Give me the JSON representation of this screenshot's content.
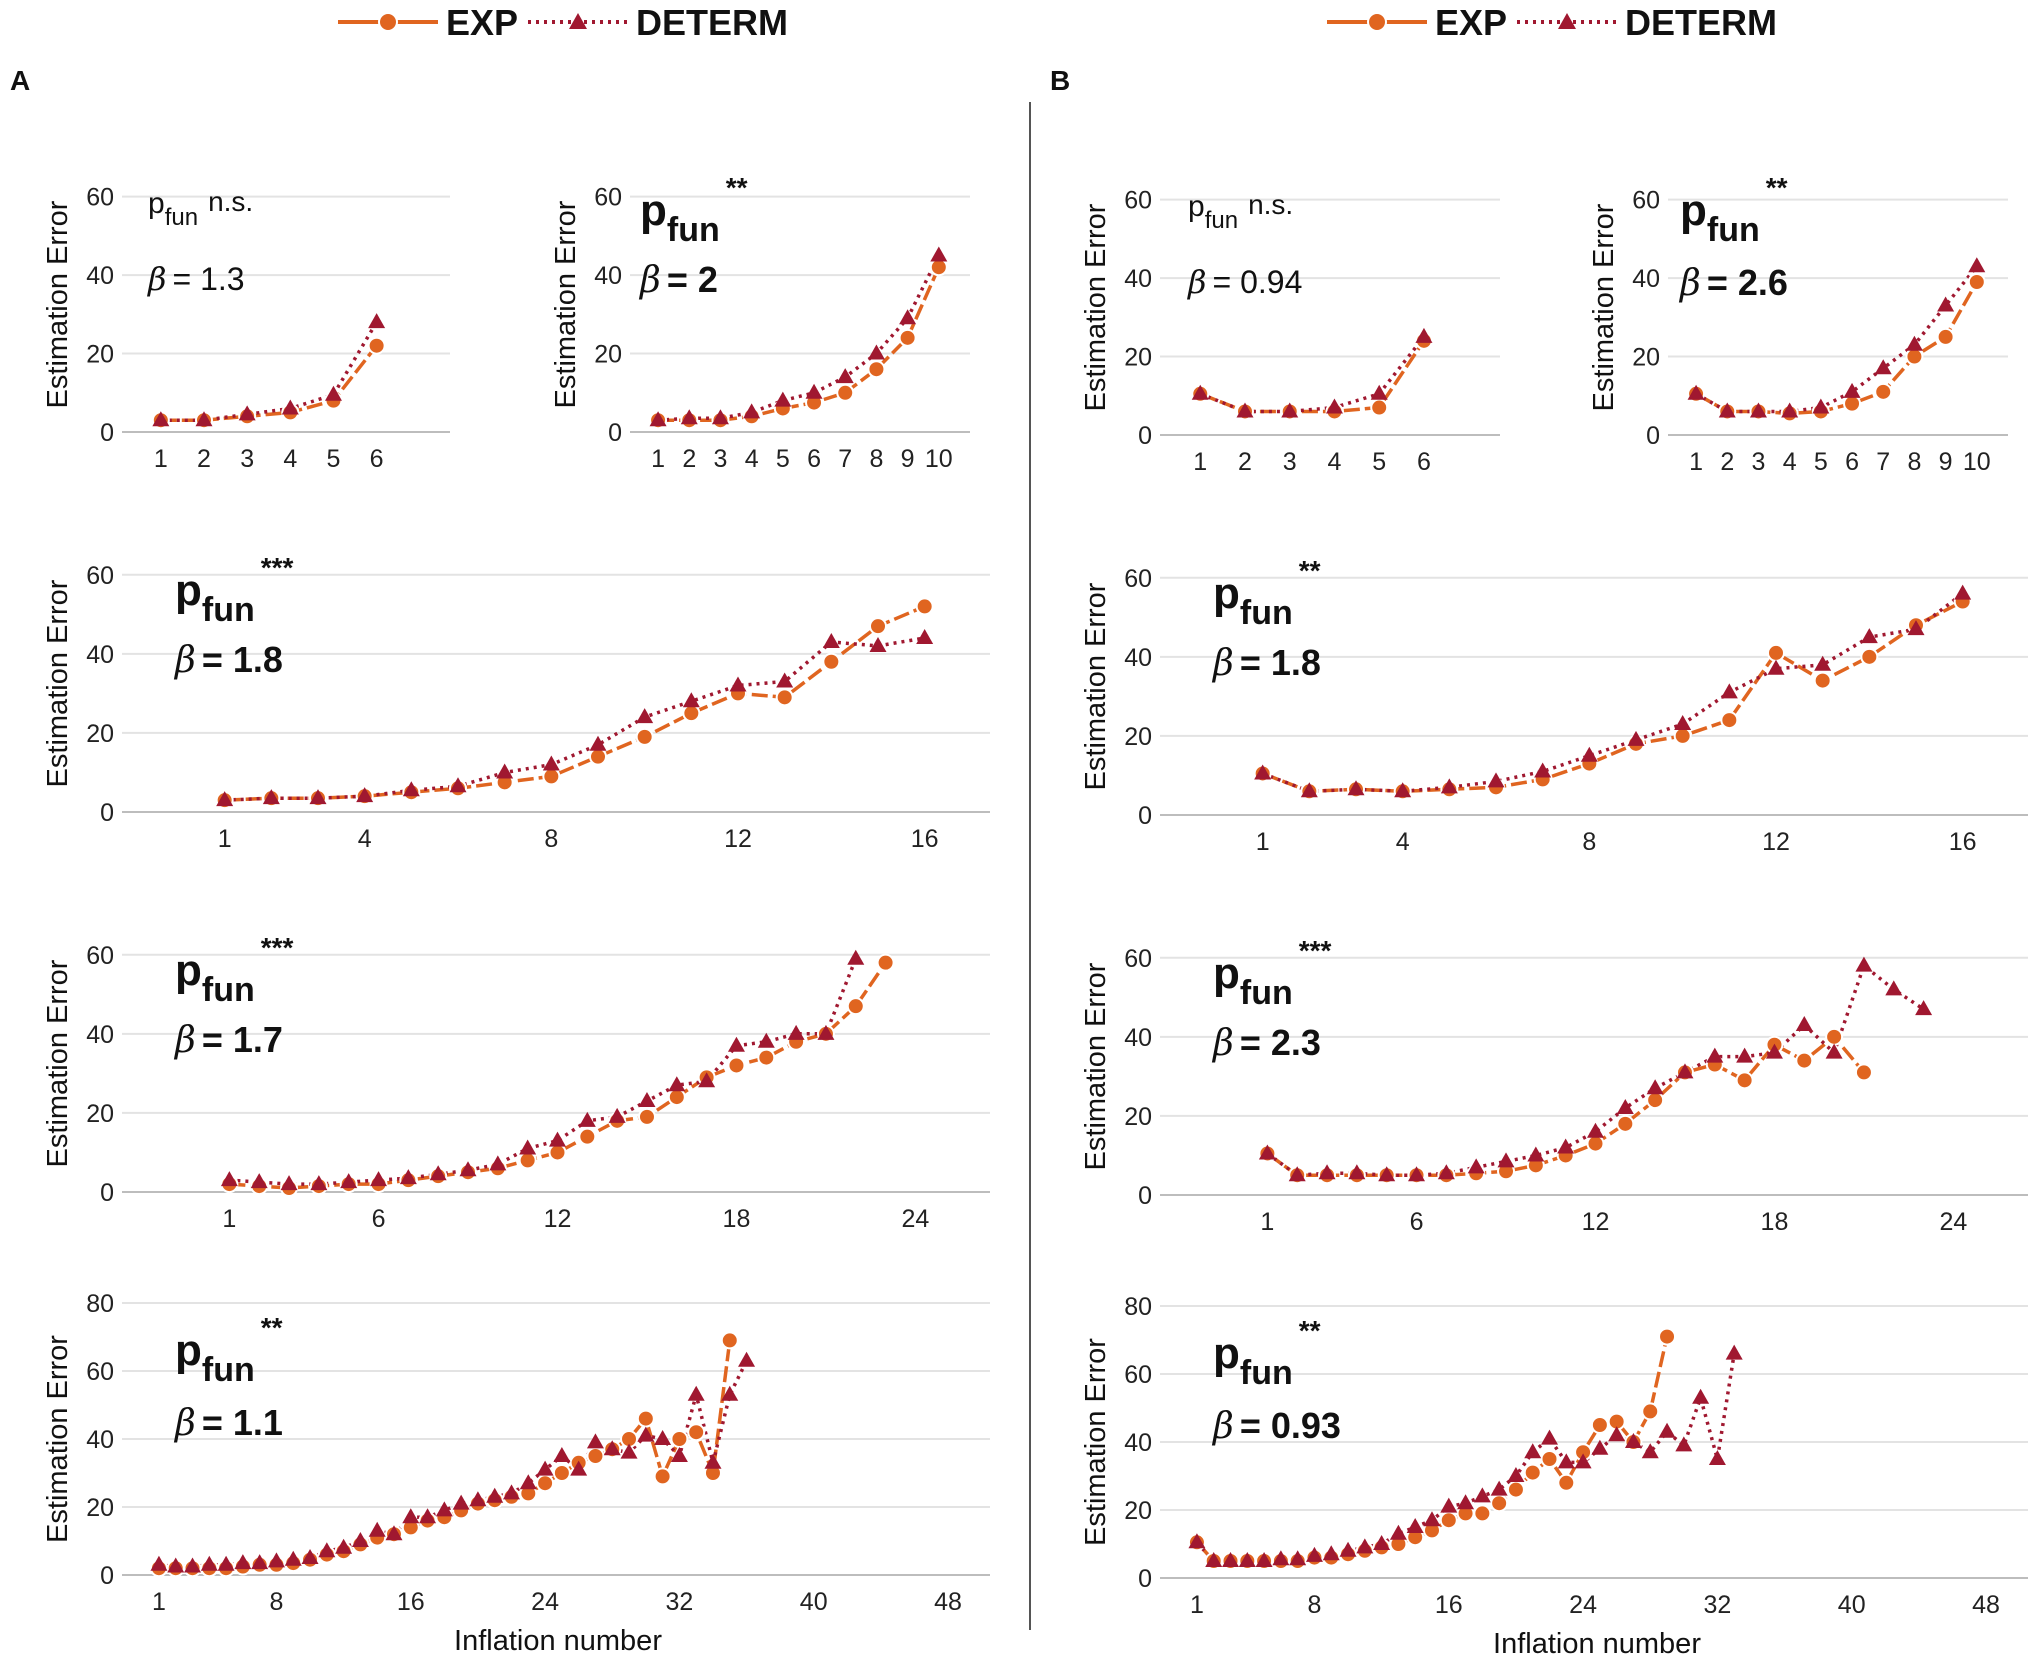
{
  "legend": {
    "exp_label": "EXP",
    "determ_label": "DETERM"
  },
  "colors": {
    "exp": "#e06520",
    "determ": "#a01830",
    "grid": "#e3e3e3",
    "divider": "#555555"
  },
  "panel_letters": {
    "A": "A",
    "B": "B"
  },
  "ylabel": "Estimation Error",
  "xlabel": "Inflation number",
  "chart_data": [
    {
      "id": "A1",
      "type": "line",
      "ylabel": "Estimation Error",
      "xticks": [
        1,
        2,
        3,
        4,
        5,
        6
      ],
      "xlim": [
        0.1,
        7.7
      ],
      "ylim": [
        0,
        65
      ],
      "yticks": [
        0,
        20,
        40,
        60
      ],
      "p_label": "p",
      "p_sub": "fun",
      "p_stars": "n.s.",
      "beta_label": "β",
      "beta_value": "= 1.3",
      "significant": false,
      "series": [
        {
          "name": "EXP",
          "x": [
            1,
            2,
            3,
            4,
            5,
            6
          ],
          "y": [
            3,
            3,
            4,
            5,
            8,
            22
          ]
        },
        {
          "name": "DETERM",
          "x": [
            1,
            2,
            3,
            4,
            5,
            6
          ],
          "y": [
            3,
            3,
            4.5,
            6,
            9.5,
            28
          ]
        }
      ]
    },
    {
      "id": "A2",
      "type": "line",
      "ylabel": "Estimation Error",
      "xticks": [
        1,
        2,
        3,
        4,
        5,
        6,
        7,
        8,
        9,
        10
      ],
      "xlim": [
        0.1,
        11
      ],
      "ylim": [
        0,
        65
      ],
      "yticks": [
        0,
        20,
        40,
        60
      ],
      "p_label": "p",
      "p_sub": "fun",
      "p_stars": "**",
      "beta_label": "β",
      "beta_value": "= 2",
      "significant": true,
      "series": [
        {
          "name": "EXP",
          "x": [
            1,
            2,
            3,
            4,
            5,
            6,
            7,
            8,
            9,
            10
          ],
          "y": [
            3,
            3,
            3,
            4,
            6,
            7.5,
            10,
            16,
            24,
            42
          ]
        },
        {
          "name": "DETERM",
          "x": [
            1,
            2,
            3,
            4,
            5,
            6,
            7,
            8,
            9,
            10
          ],
          "y": [
            3,
            3.5,
            3.5,
            5,
            8,
            10,
            14,
            20,
            29,
            45
          ]
        }
      ]
    },
    {
      "id": "B1",
      "type": "line",
      "ylabel": "Estimation Error",
      "xticks": [
        1,
        2,
        3,
        4,
        5,
        6
      ],
      "xlim": [
        0.1,
        7.7
      ],
      "ylim": [
        0,
        65
      ],
      "yticks": [
        0,
        20,
        40,
        60
      ],
      "p_label": "p",
      "p_sub": "fun",
      "p_stars": "n.s.",
      "beta_label": "β",
      "beta_value": "= 0.94",
      "significant": false,
      "series": [
        {
          "name": "EXP",
          "x": [
            1,
            2,
            3,
            4,
            5,
            6
          ],
          "y": [
            10.5,
            6,
            6,
            6,
            7,
            24
          ]
        },
        {
          "name": "DETERM",
          "x": [
            1,
            2,
            3,
            4,
            5,
            6
          ],
          "y": [
            10.5,
            6,
            6,
            7,
            10.5,
            25
          ]
        }
      ]
    },
    {
      "id": "B2",
      "type": "line",
      "ylabel": "Estimation Error",
      "xticks": [
        1,
        2,
        3,
        4,
        5,
        6,
        7,
        8,
        9,
        10
      ],
      "xlim": [
        0.1,
        11
      ],
      "ylim": [
        0,
        65
      ],
      "yticks": [
        0,
        20,
        40,
        60
      ],
      "p_label": "p",
      "p_sub": "fun",
      "p_stars": "**",
      "beta_label": "β",
      "beta_value": "= 2.6",
      "significant": true,
      "series": [
        {
          "name": "EXP",
          "x": [
            1,
            2,
            3,
            4,
            5,
            6,
            7,
            8,
            9,
            10
          ],
          "y": [
            10.5,
            6,
            6,
            5.5,
            6,
            8,
            11,
            20,
            25,
            39
          ]
        },
        {
          "name": "DETERM",
          "x": [
            1,
            2,
            3,
            4,
            5,
            6,
            7,
            8,
            9,
            10
          ],
          "y": [
            10.5,
            6,
            6,
            6,
            7,
            11,
            17,
            23,
            33,
            43
          ]
        }
      ]
    },
    {
      "id": "A3",
      "type": "line",
      "ylabel": "Estimation Error",
      "xticks": [
        1,
        4,
        8,
        12,
        16
      ],
      "xlim": [
        -1.2,
        17.4
      ],
      "ylim": [
        0,
        65
      ],
      "yticks": [
        0,
        20,
        40,
        60
      ],
      "p_label": "p",
      "p_sub": "fun",
      "p_stars": "***",
      "beta_label": "β",
      "beta_value": "= 1.8",
      "significant": true,
      "series": [
        {
          "name": "EXP",
          "x": [
            1,
            2,
            3,
            4,
            5,
            6,
            7,
            8,
            9,
            10,
            11,
            12,
            13,
            14,
            15,
            16
          ],
          "y": [
            3,
            3.5,
            3.5,
            4,
            5,
            6,
            7.5,
            9,
            14,
            19,
            25,
            30,
            29,
            38,
            47,
            52
          ]
        },
        {
          "name": "DETERM",
          "x": [
            1,
            2,
            3,
            4,
            5,
            6,
            7,
            8,
            9,
            10,
            11,
            12,
            13,
            14,
            15,
            16
          ],
          "y": [
            3,
            3.5,
            3.5,
            4,
            5.5,
            6.5,
            10,
            12,
            17,
            24,
            28,
            32,
            33,
            43,
            42,
            44
          ]
        }
      ]
    },
    {
      "id": "B3",
      "type": "line",
      "ylabel": "Estimation Error",
      "xticks": [
        1,
        4,
        8,
        12,
        16
      ],
      "xlim": [
        -1.2,
        17.4
      ],
      "ylim": [
        0,
        65
      ],
      "yticks": [
        0,
        20,
        40,
        60
      ],
      "p_label": "p",
      "p_sub": "fun",
      "p_stars": "**",
      "beta_label": "β",
      "beta_value": "= 1.8",
      "significant": true,
      "series": [
        {
          "name": "EXP",
          "x": [
            1,
            2,
            3,
            4,
            5,
            6,
            7,
            8,
            9,
            10,
            11,
            12,
            13,
            14,
            15,
            16
          ],
          "y": [
            10.5,
            6,
            6.5,
            6,
            6.5,
            7,
            9,
            13,
            18,
            20,
            24,
            41,
            34,
            40,
            48,
            54
          ]
        },
        {
          "name": "DETERM",
          "x": [
            1,
            2,
            3,
            4,
            5,
            6,
            7,
            8,
            9,
            10,
            11,
            12,
            13,
            14,
            15,
            16
          ],
          "y": [
            10.5,
            6,
            6.5,
            6,
            7,
            8.5,
            11,
            15,
            19,
            23,
            31,
            37,
            38,
            45,
            47,
            56
          ]
        }
      ]
    },
    {
      "id": "A4",
      "type": "line",
      "ylabel": "Estimation Error",
      "xticks": [
        1,
        6,
        12,
        18,
        24
      ],
      "xlim": [
        -2.6,
        26.5
      ],
      "ylim": [
        0,
        65
      ],
      "yticks": [
        0,
        20,
        40,
        60
      ],
      "p_label": "p",
      "p_sub": "fun",
      "p_stars": "***",
      "beta_label": "β",
      "beta_value": "= 1.7",
      "significant": true,
      "series": [
        {
          "name": "EXP",
          "x": [
            1,
            2,
            3,
            4,
            5,
            6,
            7,
            8,
            9,
            10,
            11,
            12,
            13,
            14,
            15,
            16,
            17,
            18,
            19,
            20,
            21,
            22,
            23
          ],
          "y": [
            2,
            1.5,
            1,
            1.5,
            2,
            2,
            3,
            4,
            5,
            6,
            8,
            10,
            14,
            18,
            19,
            24,
            29,
            32,
            34,
            38,
            40,
            47,
            58
          ]
        },
        {
          "name": "DETERM",
          "x": [
            1,
            2,
            3,
            4,
            5,
            6,
            7,
            8,
            9,
            10,
            11,
            12,
            13,
            14,
            15,
            16,
            17,
            18,
            19,
            20,
            21,
            22
          ],
          "y": [
            3,
            2.5,
            2,
            2,
            2.5,
            3,
            3.5,
            4.5,
            5.5,
            7,
            11,
            13,
            18,
            19,
            23,
            27,
            28,
            37,
            38,
            40,
            40,
            59
          ]
        }
      ]
    },
    {
      "id": "B4",
      "type": "line",
      "ylabel": "Estimation Error",
      "xticks": [
        1,
        6,
        12,
        18,
        24
      ],
      "xlim": [
        -2.6,
        26.5
      ],
      "ylim": [
        0,
        65
      ],
      "yticks": [
        0,
        20,
        40,
        60
      ],
      "p_label": "p",
      "p_sub": "fun",
      "p_stars": "***",
      "beta_label": "β",
      "beta_value": "= 2.3",
      "significant": true,
      "series": [
        {
          "name": "EXP",
          "x": [
            1,
            2,
            3,
            4,
            5,
            6,
            7,
            8,
            9,
            10,
            11,
            12,
            13,
            14,
            15,
            16,
            17,
            18,
            19,
            20,
            21
          ],
          "y": [
            10.5,
            5,
            5,
            5,
            5,
            5,
            5,
            5.5,
            6,
            7.5,
            10,
            13,
            18,
            24,
            31,
            33,
            29,
            38,
            34,
            40,
            31
          ]
        },
        {
          "name": "DETERM",
          "x": [
            1,
            2,
            3,
            4,
            5,
            6,
            7,
            8,
            9,
            10,
            11,
            12,
            13,
            14,
            15,
            16,
            17,
            18,
            19,
            20,
            21,
            22,
            23
          ],
          "y": [
            10.5,
            5,
            5.5,
            5.5,
            5,
            5,
            5.5,
            7,
            8.5,
            10,
            12,
            16,
            22,
            27,
            31,
            35,
            35,
            36,
            43,
            36,
            58,
            52,
            47
          ]
        }
      ]
    },
    {
      "id": "A5",
      "type": "line",
      "ylabel": "Estimation Error",
      "xlabel": "Inflation number",
      "xticks": [
        1,
        8,
        16,
        24,
        32,
        40,
        48
      ],
      "xlim": [
        -1.2,
        50.5
      ],
      "ylim": [
        0,
        80
      ],
      "yticks": [
        0,
        20,
        40,
        60,
        80
      ],
      "p_label": "p",
      "p_sub": "fun",
      "p_stars": "**",
      "beta_label": "β",
      "beta_value": "= 1.1",
      "significant": true,
      "series": [
        {
          "name": "EXP",
          "x": [
            1,
            2,
            3,
            4,
            5,
            6,
            7,
            8,
            9,
            10,
            11,
            12,
            13,
            14,
            15,
            16,
            17,
            18,
            19,
            20,
            21,
            22,
            23,
            24,
            25,
            26,
            27,
            28,
            29,
            30,
            31,
            32,
            33,
            34,
            35
          ],
          "y": [
            2,
            2,
            2,
            2,
            2,
            2.5,
            3,
            3,
            3.5,
            4.5,
            6,
            7,
            9,
            11,
            12,
            14,
            16,
            17,
            19,
            21,
            22,
            23,
            24,
            27,
            30,
            33,
            35,
            37,
            40,
            46,
            29,
            40,
            42,
            30,
            69
          ]
        },
        {
          "name": "DETERM",
          "x": [
            1,
            2,
            3,
            4,
            5,
            6,
            7,
            8,
            9,
            10,
            11,
            12,
            13,
            14,
            15,
            16,
            17,
            18,
            19,
            20,
            21,
            22,
            23,
            24,
            25,
            26,
            27,
            28,
            29,
            30,
            31,
            32,
            33,
            34,
            35,
            36
          ],
          "y": [
            3,
            2.5,
            2.5,
            3,
            3,
            3.5,
            3.5,
            4,
            4.5,
            5,
            7,
            8,
            10,
            13,
            12,
            17,
            17,
            19,
            21,
            22,
            23,
            24,
            27,
            31,
            35,
            31,
            39,
            37,
            36,
            41,
            40,
            35,
            53,
            33,
            53,
            63
          ]
        }
      ]
    },
    {
      "id": "B5",
      "type": "line",
      "ylabel": "Estimation Error",
      "xlabel": "Inflation number",
      "xticks": [
        1,
        8,
        16,
        24,
        32,
        40,
        48
      ],
      "xlim": [
        -1.2,
        50.5
      ],
      "ylim": [
        0,
        80
      ],
      "yticks": [
        0,
        20,
        40,
        60,
        80
      ],
      "p_label": "p",
      "p_sub": "fun",
      "p_stars": "**",
      "beta_label": "β",
      "beta_value": "= 0.93",
      "significant": true,
      "series": [
        {
          "name": "EXP",
          "x": [
            1,
            2,
            3,
            4,
            5,
            6,
            7,
            8,
            9,
            10,
            11,
            12,
            13,
            14,
            15,
            16,
            17,
            18,
            19,
            20,
            21,
            22,
            23,
            24,
            25,
            26,
            27,
            28,
            29
          ],
          "y": [
            10.5,
            5,
            5,
            5,
            5,
            5,
            5,
            6,
            6,
            7,
            8,
            9,
            10,
            12,
            14,
            17,
            19,
            19,
            22,
            26,
            31,
            35,
            28,
            37,
            45,
            46,
            40,
            49,
            71
          ]
        },
        {
          "name": "DETERM",
          "x": [
            1,
            2,
            3,
            4,
            5,
            6,
            7,
            8,
            9,
            10,
            11,
            12,
            13,
            14,
            15,
            16,
            17,
            18,
            19,
            20,
            21,
            22,
            23,
            24,
            25,
            26,
            27,
            28,
            29,
            30,
            31,
            32,
            33
          ],
          "y": [
            10.5,
            5,
            5,
            5,
            5,
            5.5,
            5.5,
            6.5,
            7,
            8,
            9,
            10,
            13,
            15,
            17,
            21,
            22,
            24,
            26,
            30,
            37,
            41,
            34,
            34,
            38,
            42,
            40,
            37,
            43,
            39,
            53,
            35,
            66
          ]
        }
      ]
    }
  ]
}
